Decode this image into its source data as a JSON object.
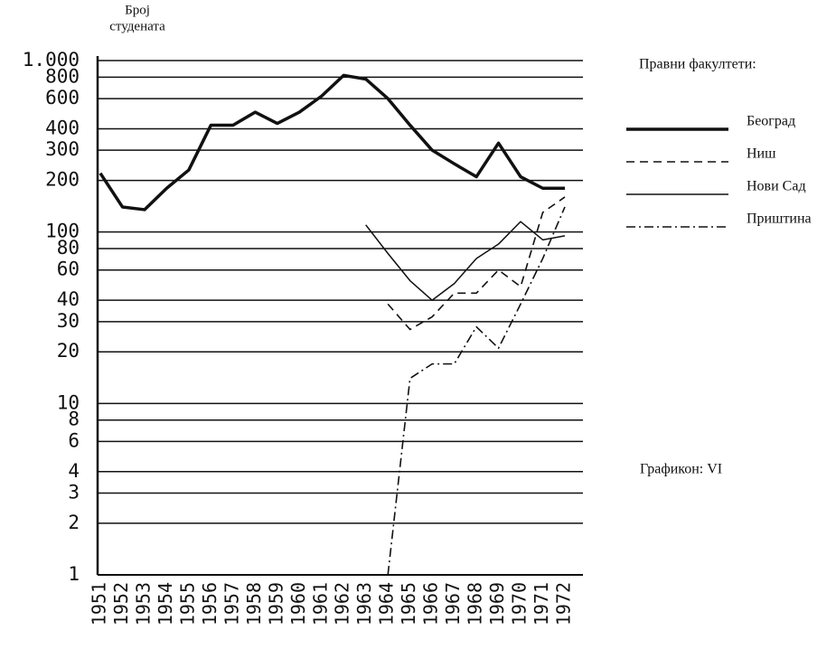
{
  "chart_data": {
    "type": "line",
    "y_label_lines": [
      "Број",
      "студената"
    ],
    "legend_title": "Правни факултети:",
    "caption": "Графикон: VI",
    "log_y": true,
    "grid": true,
    "categories": [
      "1951",
      "1952",
      "1953",
      "1954",
      "1955",
      "1956",
      "1957",
      "1958",
      "1959",
      "1960",
      "1961",
      "1962",
      "1963",
      "1964",
      "1965",
      "1966",
      "1967",
      "1968",
      "1969",
      "1970",
      "1971",
      "1972"
    ],
    "ylim": [
      1,
      1000
    ],
    "yticks": [
      1,
      2,
      3,
      4,
      6,
      8,
      10,
      20,
      30,
      40,
      60,
      80,
      100,
      200,
      300,
      400,
      600,
      800,
      {
        "value": 1000,
        "label": "1.000"
      }
    ],
    "series": [
      {
        "name": "Београд",
        "color": "#111111",
        "style": "thick",
        "values": [
          220,
          140,
          135,
          180,
          230,
          420,
          420,
          500,
          430,
          500,
          620,
          820,
          780,
          600,
          420,
          300,
          250,
          210,
          330,
          210,
          180,
          180
        ]
      },
      {
        "name": "Ниш",
        "color": "#111111",
        "style": "dashed",
        "values": [
          null,
          null,
          null,
          null,
          null,
          null,
          null,
          null,
          null,
          null,
          null,
          null,
          null,
          38,
          27,
          32,
          44,
          44,
          60,
          48,
          130,
          160
        ]
      },
      {
        "name": "Нови Сад",
        "color": "#111111",
        "style": "thin",
        "values": [
          null,
          null,
          null,
          null,
          null,
          null,
          null,
          null,
          null,
          null,
          null,
          null,
          110,
          75,
          52,
          40,
          50,
          70,
          85,
          115,
          90,
          95
        ]
      },
      {
        "name": "Приштина",
        "color": "#111111",
        "style": "dashdot",
        "values": [
          null,
          null,
          null,
          null,
          null,
          null,
          null,
          null,
          null,
          null,
          null,
          null,
          null,
          1,
          14,
          17,
          17,
          28,
          21,
          38,
          70,
          140
        ]
      }
    ]
  }
}
